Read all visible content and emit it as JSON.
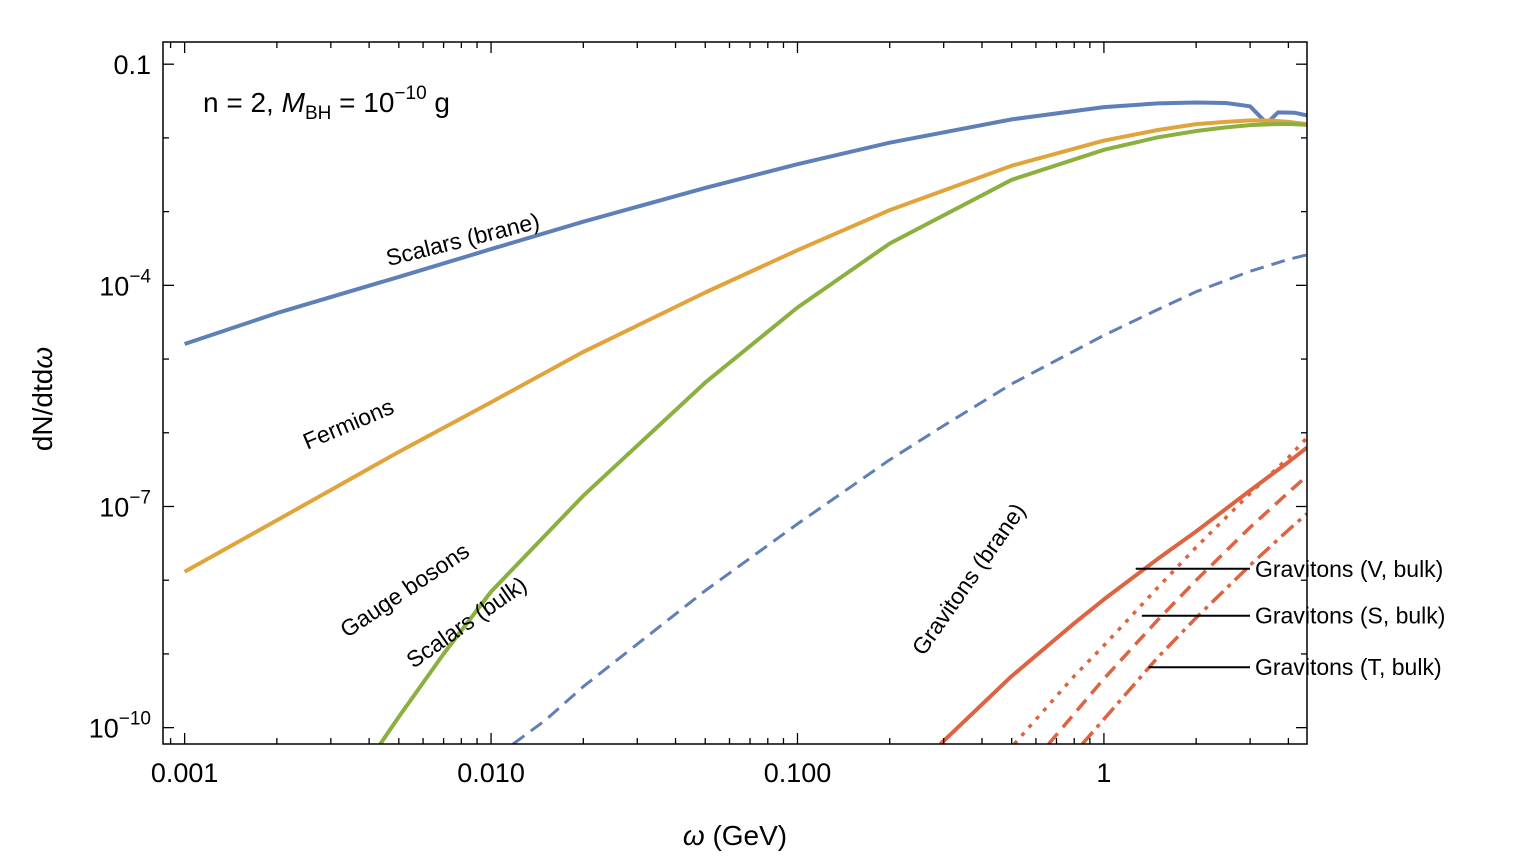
{
  "chart_data": {
    "type": "line",
    "title": "",
    "xlabel": "ω (GeV)",
    "ylabel": "dN/dtdω",
    "xscale": "log",
    "yscale": "log",
    "xlim": [
      0.00085,
      4.6
    ],
    "ylim": [
      6e-11,
      0.2
    ],
    "x_ticks": [
      {
        "value": 0.001,
        "label": "0.001"
      },
      {
        "value": 0.01,
        "label": "0.010"
      },
      {
        "value": 0.1,
        "label": "0.100"
      },
      {
        "value": 1,
        "label": "1"
      }
    ],
    "y_ticks": [
      {
        "value": 0.1,
        "base": "0.1",
        "exp": ""
      },
      {
        "value": 0.0001,
        "base": "10",
        "exp": "−4"
      },
      {
        "value": 1e-07,
        "base": "10",
        "exp": "−7"
      },
      {
        "value": 1e-10,
        "base": "10",
        "exp": "−10"
      }
    ],
    "annotation": {
      "prefix": "n = 2, ",
      "symbol": "M",
      "subscript": "BH",
      "middle": " = 10",
      "exponent": "−10",
      "suffix": " g"
    },
    "series": [
      {
        "name": "Scalars (brane)",
        "color": "#5f7fb8",
        "style": "solid",
        "width": 4,
        "points": [
          [
            0.001,
            1.6e-05
          ],
          [
            0.002,
            4.2e-05
          ],
          [
            0.005,
            0.00013
          ],
          [
            0.01,
            0.00031
          ],
          [
            0.02,
            0.00073
          ],
          [
            0.05,
            0.0021
          ],
          [
            0.1,
            0.0044
          ],
          [
            0.2,
            0.0086
          ],
          [
            0.5,
            0.0178
          ],
          [
            1.0,
            0.0262
          ],
          [
            1.5,
            0.0294
          ],
          [
            2.0,
            0.0302
          ],
          [
            2.5,
            0.0298
          ],
          [
            3.0,
            0.0268
          ],
          [
            3.4,
            0.0158
          ],
          [
            3.7,
            0.0222
          ],
          [
            4.2,
            0.0219
          ],
          [
            4.6,
            0.0202
          ]
        ]
      },
      {
        "name": "Fermions",
        "color": "#e1a43c",
        "style": "solid",
        "width": 4,
        "points": [
          [
            0.001,
            1.3e-08
          ],
          [
            0.002,
            6.5e-08
          ],
          [
            0.005,
            5.5e-07
          ],
          [
            0.01,
            2.6e-06
          ],
          [
            0.02,
            1.25e-05
          ],
          [
            0.05,
            8e-05
          ],
          [
            0.1,
            0.0003
          ],
          [
            0.2,
            0.00105
          ],
          [
            0.5,
            0.0042
          ],
          [
            1.0,
            0.0092
          ],
          [
            1.5,
            0.0128
          ],
          [
            2.0,
            0.0154
          ],
          [
            2.5,
            0.0165
          ],
          [
            3.0,
            0.0173
          ],
          [
            3.5,
            0.0172
          ],
          [
            4.0,
            0.0165
          ],
          [
            4.6,
            0.0154
          ]
        ]
      },
      {
        "name": "Gauge bosons",
        "color": "#8bb040",
        "style": "solid",
        "width": 4,
        "points": [
          [
            0.00435,
            6e-11
          ],
          [
            0.005,
            1.4e-10
          ],
          [
            0.007,
            1e-09
          ],
          [
            0.01,
            7e-09
          ],
          [
            0.02,
            1.4e-07
          ],
          [
            0.05,
            4.8e-06
          ],
          [
            0.1,
            5e-05
          ],
          [
            0.2,
            0.00037
          ],
          [
            0.5,
            0.0027
          ],
          [
            1.0,
            0.0069
          ],
          [
            1.5,
            0.0102
          ],
          [
            2.0,
            0.0124
          ],
          [
            2.5,
            0.0139
          ],
          [
            3.0,
            0.0149
          ],
          [
            3.5,
            0.0153
          ],
          [
            4.0,
            0.0155
          ],
          [
            4.6,
            0.015
          ]
        ]
      },
      {
        "name": "Scalars (bulk)",
        "color": "#5f7fb8",
        "style": "dash",
        "width": 3,
        "points": [
          [
            0.0118,
            6e-11
          ],
          [
            0.015,
            1.25e-10
          ],
          [
            0.02,
            3.6e-10
          ],
          [
            0.05,
            7.2e-09
          ],
          [
            0.1,
            5.8e-08
          ],
          [
            0.2,
            4.3e-07
          ],
          [
            0.3,
            1.25e-06
          ],
          [
            0.5,
            4.6e-06
          ],
          [
            1.0,
            2.1e-05
          ],
          [
            1.5,
            4.7e-05
          ],
          [
            2.0,
            8.2e-05
          ],
          [
            3.0,
            0.000155
          ],
          [
            4.0,
            0.000225
          ],
          [
            4.6,
            0.00026
          ]
        ]
      },
      {
        "name": "Gravitons (brane)",
        "color": "#dd6341",
        "style": "solid",
        "width": 4,
        "points": [
          [
            0.293,
            6e-11
          ],
          [
            0.5,
            5e-10
          ],
          [
            0.8,
            2.6e-09
          ],
          [
            1.0,
            5.5e-09
          ],
          [
            1.5,
            1.95e-08
          ],
          [
            2.0,
            4.6e-08
          ],
          [
            3.0,
            1.65e-07
          ],
          [
            4.0,
            4e-07
          ],
          [
            4.6,
            6.3e-07
          ]
        ]
      },
      {
        "name": "Gravitons (V, bulk)",
        "color": "#dd6341",
        "style": "dot",
        "width": 3.5,
        "points": [
          [
            0.51,
            6e-11
          ],
          [
            0.8,
            5e-10
          ],
          [
            1.0,
            1.3e-09
          ],
          [
            1.5,
            8e-09
          ],
          [
            2.0,
            2.8e-08
          ],
          [
            3.0,
            1.5e-07
          ],
          [
            4.0,
            4.6e-07
          ],
          [
            4.6,
            8.6e-07
          ]
        ]
      },
      {
        "name": "Gravitons (S, bulk)",
        "color": "#dd6341",
        "style": "dash",
        "width": 3.5,
        "points": [
          [
            0.66,
            6e-11
          ],
          [
            1.0,
            4.6e-10
          ],
          [
            1.5,
            2.9e-09
          ],
          [
            2.0,
            1e-08
          ],
          [
            3.0,
            5.2e-08
          ],
          [
            4.0,
            1.55e-07
          ],
          [
            4.6,
            2.6e-07
          ]
        ]
      },
      {
        "name": "Gravitons (T, bulk)",
        "color": "#dd6341",
        "style": "dashdot",
        "width": 3.5,
        "points": [
          [
            0.85,
            6e-11
          ],
          [
            1.0,
            1.3e-10
          ],
          [
            1.5,
            9e-10
          ],
          [
            2.0,
            3.1e-09
          ],
          [
            3.0,
            1.6e-08
          ],
          [
            4.0,
            4.8e-08
          ],
          [
            4.6,
            8e-08
          ]
        ]
      }
    ],
    "curve_labels": [
      {
        "text": "Scalars (brane)",
        "x": 0.0082,
        "y": 0.00033,
        "angle": -14
      },
      {
        "text": "Fermions",
        "x": 0.0035,
        "y": 1.05e-06,
        "angle": -23
      },
      {
        "text": "Gauge bosons",
        "x": 0.0054,
        "y": 6e-09,
        "angle": -34
      },
      {
        "text": "Scalars (bulk)",
        "x": 0.0086,
        "y": 2.2e-09,
        "angle": -35
      },
      {
        "text": "Gravitons (brane)",
        "x": 0.38,
        "y": 9e-09,
        "angle": -55
      }
    ],
    "legend_callouts": [
      {
        "text": "Gravitons (V, bulk)",
        "series": "Gravitons (V, bulk)",
        "x": 1.27,
        "y": 1.43e-08
      },
      {
        "text": "Gravitons (S, bulk)",
        "series": "Gravitons (S, bulk)",
        "x": 1.33,
        "y": 3.3e-09
      },
      {
        "text": "Gravitons (T, bulk)",
        "series": "Gravitons (T, bulk)",
        "x": 1.4,
        "y": 6.6e-10
      }
    ]
  }
}
